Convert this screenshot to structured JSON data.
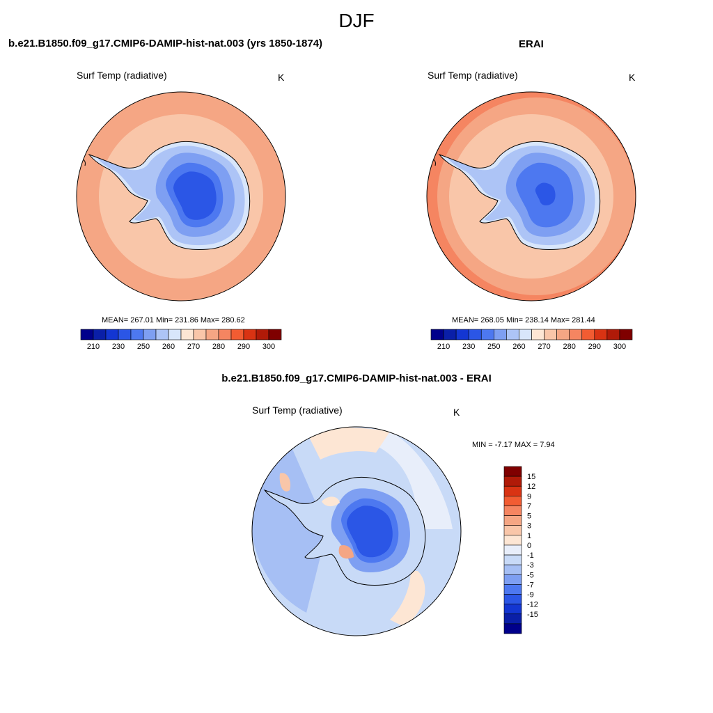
{
  "figure": {
    "season": "DJF"
  },
  "panels": [
    {
      "id": "model",
      "title": "b.e21.B1850.f09_g17.CMIP6-DAMIP-hist-nat.003 (yrs 1850-1874)",
      "variable": "Surf Temp (radiative)",
      "units": "K",
      "stats": "MEAN= 267.01  Min= 231.86  Max= 280.62",
      "colorbar": {
        "colors": [
          "#00008b",
          "#0a1fa8",
          "#1336d2",
          "#2b56e6",
          "#4d78f0",
          "#7e9ff2",
          "#adc4f6",
          "#d8e6fb",
          "#fde6d4",
          "#f9c6a9",
          "#f5a684",
          "#f58561",
          "#f25c32",
          "#d93313",
          "#b01a08",
          "#7f0000"
        ],
        "tick_labels": [
          "210",
          "230",
          "250",
          "260",
          "270",
          "280",
          "290",
          "300"
        ]
      }
    },
    {
      "id": "obs",
      "title": "ERAI",
      "variable": "Surf Temp (radiative)",
      "units": "K",
      "stats": "MEAN= 268.05  Min= 238.14  Max= 281.44",
      "colorbar": {
        "colors": [
          "#00008b",
          "#0a1fa8",
          "#1336d2",
          "#2b56e6",
          "#4d78f0",
          "#7e9ff2",
          "#adc4f6",
          "#d8e6fb",
          "#fde6d4",
          "#f9c6a9",
          "#f5a684",
          "#f58561",
          "#f25c32",
          "#d93313",
          "#b01a08",
          "#7f0000"
        ],
        "tick_labels": [
          "210",
          "230",
          "250",
          "260",
          "270",
          "280",
          "290",
          "300"
        ]
      }
    },
    {
      "id": "diff",
      "title": "b.e21.B1850.f09_g17.CMIP6-DAMIP-hist-nat.003 - ERAI",
      "variable": "Surf Temp (radiative)",
      "units": "K",
      "stats": "MIN =  -7.17 MAX =   7.94",
      "colorbar": {
        "colors": [
          "#7f0000",
          "#b01a08",
          "#d93313",
          "#f25c32",
          "#f58561",
          "#f5a684",
          "#f9c6a9",
          "#fde6d4",
          "#e8eefa",
          "#c8daf7",
          "#a6bff4",
          "#7e9ff2",
          "#4d78f0",
          "#2b56e6",
          "#1336d2",
          "#0a1fa8",
          "#00008b"
        ],
        "tick_labels": [
          "15",
          "12",
          "9",
          "7",
          "5",
          "3",
          "1",
          "0",
          "-1",
          "-3",
          "-5",
          "-7",
          "-9",
          "-12",
          "-15"
        ]
      }
    }
  ]
}
